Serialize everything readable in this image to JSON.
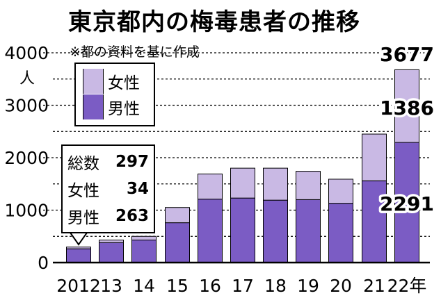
{
  "chart_data": {
    "type": "bar",
    "stacked": true,
    "title": "東京都内の梅毒患者の推移",
    "subtitle": "※都の資料を基に作成",
    "ylabel": "人",
    "ylim": [
      0,
      4000
    ],
    "yticks": [
      "0",
      "1000",
      "2000",
      "3000",
      "4000"
    ],
    "categories": [
      "2012",
      "13",
      "14",
      "15",
      "16",
      "17",
      "18",
      "19",
      "20",
      "21",
      "22年"
    ],
    "series": [
      {
        "name": "男性",
        "color": "#7b5cc4",
        "values": [
          263,
          380,
          430,
          760,
          1210,
          1230,
          1190,
          1200,
          1130,
          1560,
          2291
        ]
      },
      {
        "name": "女性",
        "color": "#c9b9e4",
        "values": [
          34,
          50,
          70,
          290,
          480,
          570,
          610,
          540,
          460,
          890,
          1386
        ]
      }
    ],
    "totals": [
      297,
      430,
      500,
      1050,
      1690,
      1800,
      1800,
      1740,
      1590,
      2450,
      3677
    ],
    "data_labels": {
      "total": "3677",
      "female": "1386",
      "male": "2291"
    },
    "callout": {
      "rows": [
        {
          "label": "総数",
          "value": "297"
        },
        {
          "label": "女性",
          "value": "34"
        },
        {
          "label": "男性",
          "value": "263"
        }
      ]
    },
    "legend": [
      {
        "label": "女性",
        "color": "#c9b9e4"
      },
      {
        "label": "男性",
        "color": "#7b5cc4"
      }
    ]
  }
}
